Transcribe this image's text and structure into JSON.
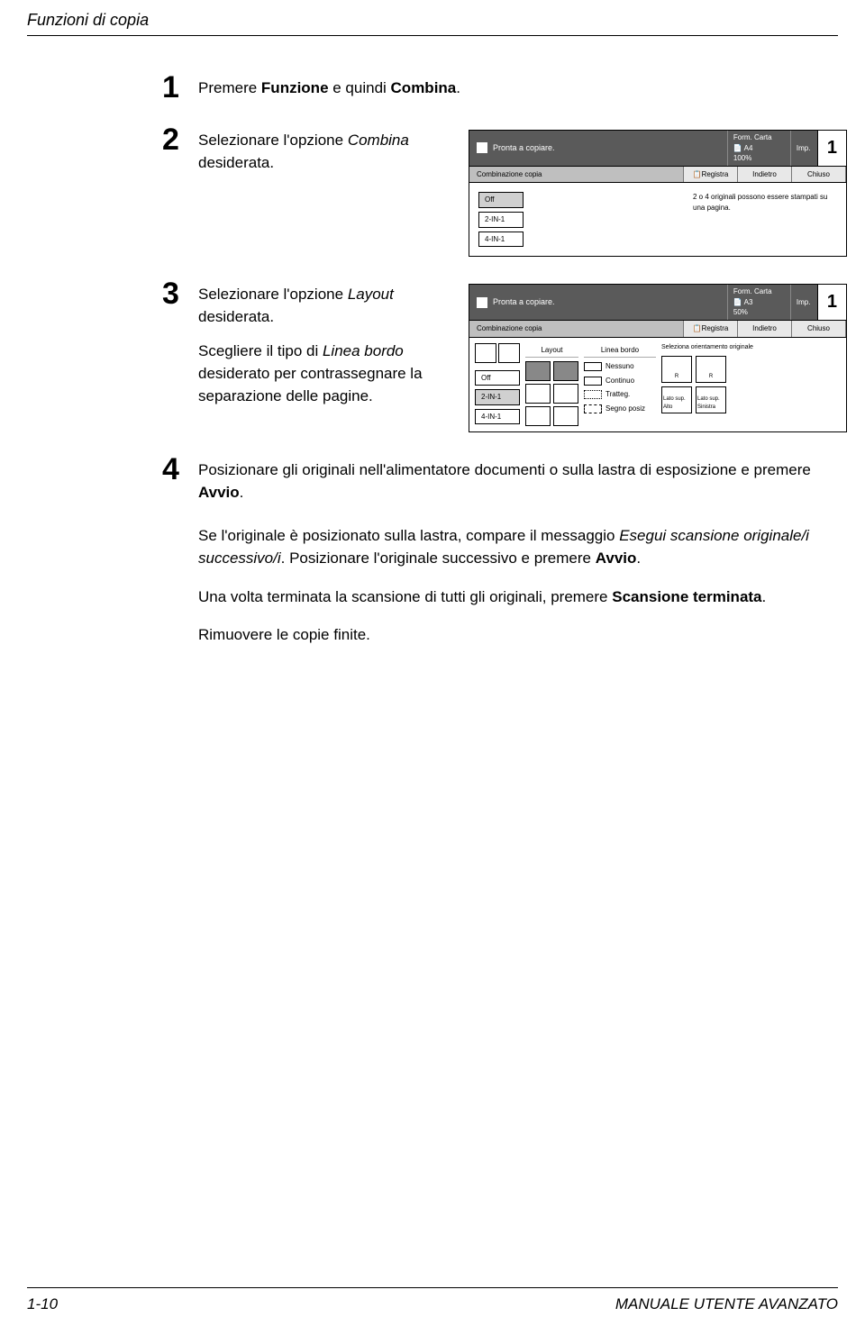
{
  "header": {
    "section_title": "Funzioni di copia"
  },
  "steps": [
    {
      "num": "1",
      "html": "Premere <b>Funzione</b> e quindi <b>Combina</b>."
    },
    {
      "num": "2",
      "html": "Selezionare l'opzione <i>Combina</i> desiderata.",
      "panel": {
        "title": "Pronta a copiare.",
        "meta_l1": "Form. Carta",
        "meta_l2": "A4",
        "meta_l3": "100%",
        "imp": "Imp.",
        "count": "1",
        "tab_main": "Combinazione copia",
        "tab_reg": "Registra",
        "tab_back": "Indietro",
        "tab_close": "Chiuso",
        "opts": [
          "Off",
          "2-IN-1",
          "4-IN-1"
        ],
        "note": "2 o 4 originali possono essere stampati su una pagina."
      }
    },
    {
      "num": "3",
      "html": "Selezionare l'opzione <i>Layout</i> desiderata.",
      "html2": "Scegliere il tipo di <i>Linea bordo</i> desiderato per contrassegnare la separazione delle pagine.",
      "panel": {
        "title": "Pronta a copiare.",
        "meta_l1": "Form. Carta",
        "meta_l2": "A3",
        "meta_l3": "50%",
        "imp": "Imp.",
        "count": "1",
        "tab_main": "Combinazione copia",
        "tab_reg": "Registra",
        "tab_back": "Indietro",
        "tab_close": "Chiuso",
        "col_layout": "Layout",
        "col_linea": "Linea bordo",
        "opts": [
          "Off",
          "2-IN-1",
          "4-IN-1"
        ],
        "linea_opts": [
          "Nessuno",
          "Continuo",
          "Tratteg.",
          "Segno posiz"
        ],
        "orient_hdr": "Seleziona orientamento originale",
        "or1": "Lato sup. Alto",
        "or2": "Lato sup. Sinistra"
      }
    },
    {
      "num": "4",
      "html": "Posizionare gli originali nell'alimentatore documenti o sulla lastra di esposizione e premere <b>Avvio</b>."
    }
  ],
  "after": [
    "Se l'originale è posizionato sulla lastra, compare il messaggio <i>Esegui scansione originale/i successivo/i</i>. Posizionare l'originale successivo e premere <b>Avvio</b>.",
    "Una volta terminata la scansione di tutti gli originali, premere <b>Scansione terminata</b>.",
    "Rimuovere le copie finite."
  ],
  "footer": {
    "page": "1-10",
    "book": "MANUALE UTENTE AVANZATO"
  }
}
